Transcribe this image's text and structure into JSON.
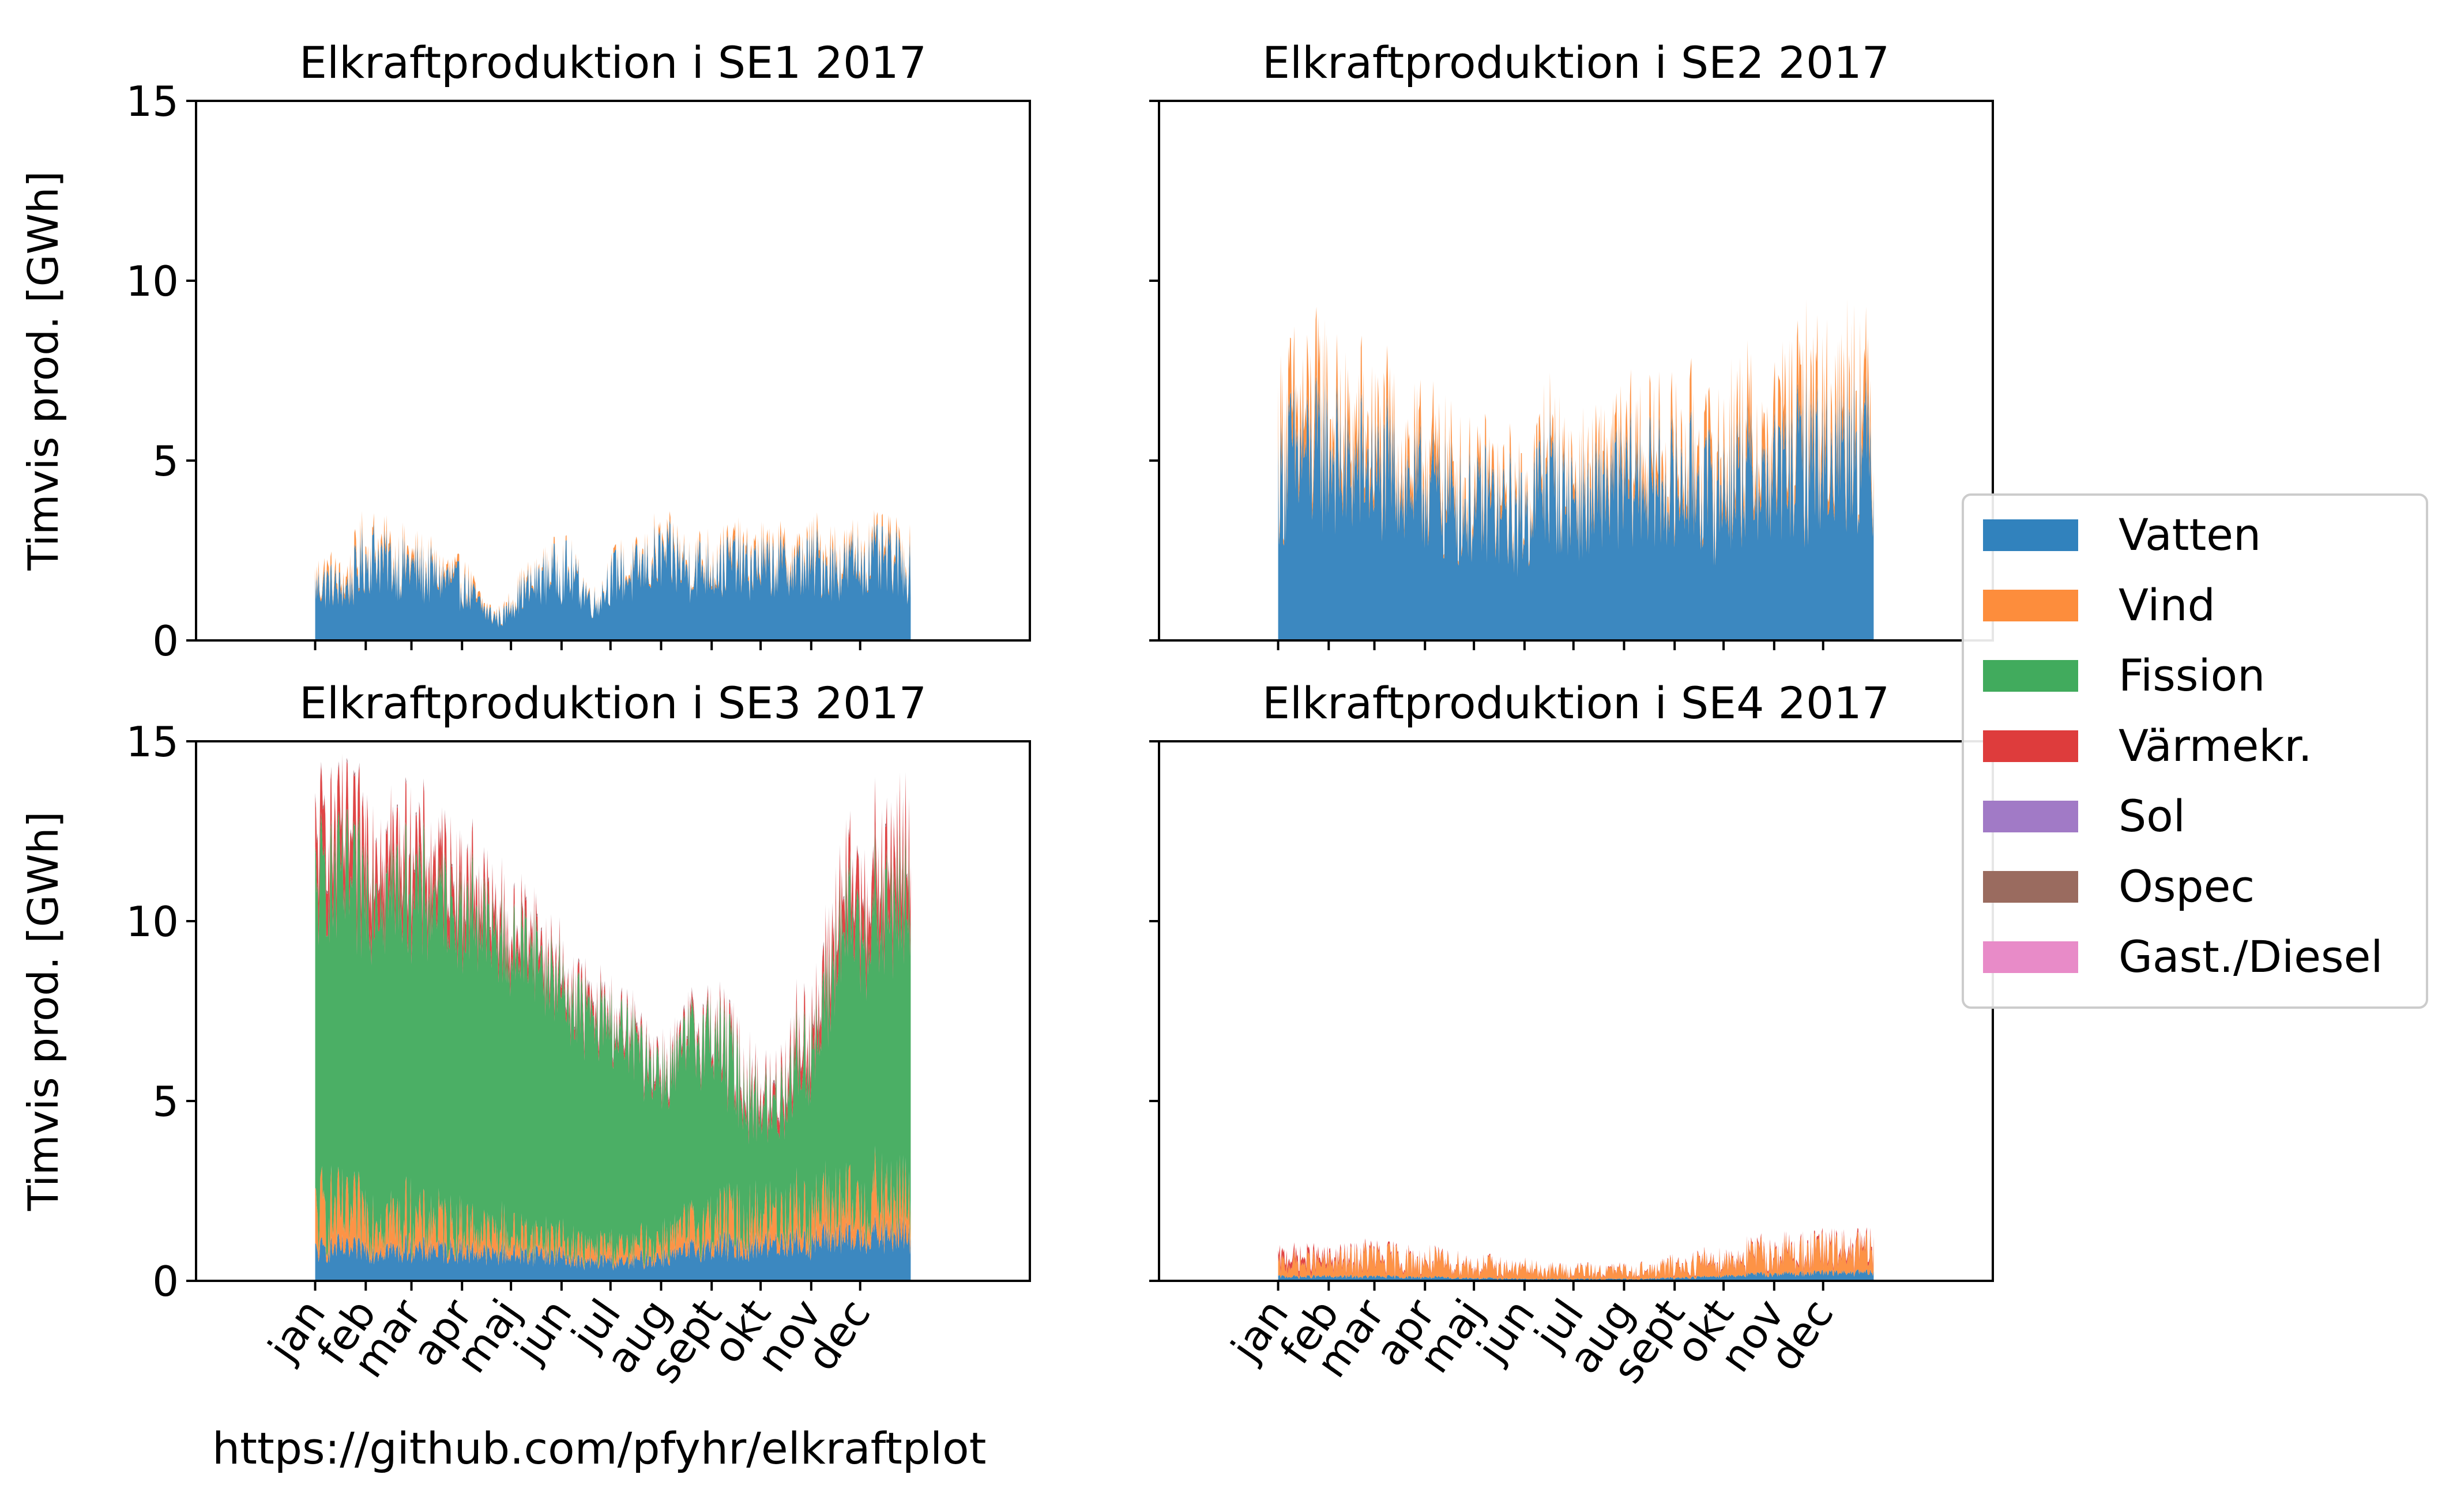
{
  "footer": {
    "url": "https://github.com/pfyhr/elkraftplot"
  },
  "chart_data": [
    {
      "type": "area",
      "title": "Elkraftproduktion i SE1 2017",
      "ylabel": "Timvis prod. [GWh]",
      "xlabel": "",
      "ylim": [
        0,
        15
      ],
      "yticks": [
        0,
        5,
        10,
        15
      ],
      "months": [
        "jan",
        "feb",
        "mar",
        "apr",
        "maj",
        "jun",
        "jul",
        "aug",
        "sept",
        "okt",
        "nov",
        "dec"
      ],
      "month_start_hours": [
        0,
        744,
        1416,
        2160,
        2880,
        3624,
        4344,
        5088,
        5832,
        6552,
        7296,
        8016
      ],
      "series": [
        {
          "name": "Vatten",
          "approx_weekly_GWh": [
            1.5,
            1.6,
            1.4,
            1.5,
            2.2,
            2.4,
            2.2,
            2.0,
            2.1,
            1.9,
            1.8,
            1.7,
            1.6,
            1.4,
            1.0,
            0.7,
            0.6,
            1.1,
            1.4,
            1.6,
            1.9,
            2.0,
            1.8,
            1.4,
            1.0,
            1.6,
            1.9,
            1.8,
            2.0,
            2.2,
            2.3,
            2.2,
            2.0,
            2.1,
            2.0,
            2.1,
            2.2,
            2.0,
            2.1,
            2.0,
            2.1,
            2.0,
            2.1,
            2.2,
            2.1,
            2.0,
            2.2,
            2.1,
            2.3,
            2.2,
            2.1,
            2.0
          ]
        },
        {
          "name": "Vind",
          "approx_weekly_GWh": [
            0.15,
            0.2,
            0.15,
            0.25,
            0.2,
            0.15,
            0.2,
            0.15,
            0.2,
            0.15,
            0.1,
            0.15,
            0.1,
            0.15,
            0.1,
            0.05,
            0.05,
            0.1,
            0.1,
            0.05,
            0.1,
            0.1,
            0.05,
            0.05,
            0.05,
            0.05,
            0.1,
            0.1,
            0.1,
            0.15,
            0.1,
            0.15,
            0.1,
            0.15,
            0.2,
            0.15,
            0.2,
            0.15,
            0.2,
            0.15,
            0.2,
            0.2,
            0.15,
            0.2,
            0.25,
            0.2,
            0.15,
            0.2,
            0.15,
            0.2,
            0.15,
            0.2
          ]
        }
      ]
    },
    {
      "type": "area",
      "title": "Elkraftproduktion i SE2 2017",
      "ylabel": "",
      "xlabel": "",
      "ylim": [
        0,
        15
      ],
      "yticks": [
        0,
        5,
        10,
        15
      ],
      "months": [
        "jan",
        "feb",
        "mar",
        "apr",
        "maj",
        "jun",
        "jul",
        "aug",
        "sept",
        "okt",
        "nov",
        "dec"
      ],
      "month_start_hours": [
        0,
        744,
        1416,
        2160,
        2880,
        3624,
        4344,
        5088,
        5832,
        6552,
        7296,
        8016
      ],
      "series": [
        {
          "name": "Vatten",
          "approx_weekly_GWh": [
            4.6,
            5.1,
            5.2,
            5.0,
            5.5,
            4.9,
            4.6,
            4.9,
            4.7,
            4.4,
            4.8,
            4.3,
            4.0,
            4.5,
            4.0,
            3.9,
            3.7,
            3.6,
            3.9,
            3.4,
            3.6,
            3.3,
            4.2,
            4.7,
            4.2,
            4.0,
            3.9,
            3.7,
            4.4,
            4.2,
            4.3,
            4.6,
            4.2,
            4.4,
            4.2,
            4.3,
            4.6,
            4.1,
            4.2,
            4.6,
            4.7,
            4.5,
            4.4,
            4.8,
            4.7,
            5.1,
            5.3,
            5.0,
            5.4,
            5.8,
            5.6,
            5.1
          ]
        },
        {
          "name": "Vind",
          "approx_weekly_GWh": [
            0.9,
            0.9,
            0.8,
            1.1,
            0.9,
            0.7,
            0.8,
            0.9,
            0.7,
            0.8,
            0.6,
            0.7,
            0.6,
            0.8,
            0.5,
            0.6,
            0.5,
            0.4,
            0.5,
            0.4,
            0.4,
            0.3,
            0.4,
            0.5,
            0.4,
            0.4,
            0.5,
            0.5,
            0.6,
            0.5,
            0.6,
            0.7,
            0.6,
            0.7,
            0.6,
            0.7,
            0.8,
            0.6,
            0.7,
            0.8,
            0.9,
            0.8,
            0.7,
            0.9,
            1.0,
            0.9,
            1.1,
            1.0,
            0.9,
            1.1,
            1.0,
            0.8
          ]
        }
      ]
    },
    {
      "type": "area",
      "title": "Elkraftproduktion i SE3 2017",
      "ylabel": "Timvis prod. [GWh]",
      "xlabel": "",
      "ylim": [
        0,
        15
      ],
      "yticks": [
        0,
        5,
        10,
        15
      ],
      "months": [
        "jan",
        "feb",
        "mar",
        "apr",
        "maj",
        "jun",
        "jul",
        "aug",
        "sept",
        "okt",
        "nov",
        "dec"
      ],
      "month_start_hours": [
        0,
        744,
        1416,
        2160,
        2880,
        3624,
        4344,
        5088,
        5832,
        6552,
        7296,
        8016
      ],
      "series": [
        {
          "name": "Vatten",
          "approx_weekly_GWh": [
            0.8,
            0.9,
            0.9,
            0.8,
            0.9,
            0.8,
            0.9,
            0.8,
            0.9,
            0.8,
            0.9,
            0.8,
            0.9,
            0.8,
            0.8,
            0.7,
            0.8,
            0.7,
            0.7,
            0.8,
            0.7,
            0.7,
            0.6,
            0.5,
            0.5,
            0.6,
            0.5,
            0.5,
            0.6,
            0.6,
            0.7,
            0.7,
            0.8,
            0.9,
            0.9,
            1.0,
            0.9,
            0.9,
            1.0,
            1.0,
            1.1,
            1.1,
            1.0,
            1.1,
            1.2,
            1.2,
            1.1,
            1.2,
            1.3,
            1.2,
            1.3,
            1.2
          ]
        },
        {
          "name": "Vind",
          "approx_weekly_GWh": [
            1.0,
            1.1,
            1.0,
            0.9,
            1.0,
            1.0,
            0.9,
            0.8,
            0.9,
            0.7,
            0.8,
            0.7,
            0.6,
            0.7,
            0.6,
            0.5,
            0.6,
            0.5,
            0.5,
            0.4,
            0.5,
            0.4,
            0.4,
            0.4,
            0.3,
            0.4,
            0.4,
            0.3,
            0.4,
            0.4,
            0.5,
            0.5,
            0.6,
            0.6,
            0.7,
            0.7,
            0.8,
            0.7,
            0.8,
            0.8,
            0.8,
            0.9,
            0.8,
            0.8,
            0.9,
            0.9,
            0.9,
            0.9,
            1.0,
            0.9,
            1.0,
            0.9
          ]
        },
        {
          "name": "Fission",
          "approx_weekly_GWh": [
            9.0,
            9.2,
            9.4,
            9.3,
            9.1,
            9.2,
            9.2,
            9.3,
            9.4,
            9.2,
            9.0,
            9.1,
            9.0,
            8.9,
            8.8,
            8.4,
            7.9,
            7.7,
            8.1,
            7.9,
            7.4,
            7.2,
            6.8,
            6.6,
            6.3,
            6.2,
            6.0,
            5.8,
            5.4,
            5.0,
            4.5,
            4.8,
            5.2,
            5.3,
            5.2,
            4.8,
            4.2,
            3.6,
            3.2,
            2.9,
            3.3,
            4.0,
            4.4,
            4.6,
            6.2,
            7.5,
            7.9,
            7.8,
            7.9,
            8.3,
            8.4,
            8.1
          ]
        },
        {
          "name": "Värmekr.",
          "approx_weekly_GWh": [
            1.3,
            1.3,
            1.2,
            1.2,
            1.3,
            1.2,
            1.1,
            1.0,
            1.1,
            1.0,
            0.9,
            1.0,
            0.8,
            0.9,
            0.7,
            0.6,
            0.6,
            0.5,
            0.5,
            0.4,
            0.4,
            0.3,
            0.3,
            0.3,
            0.3,
            0.2,
            0.2,
            0.2,
            0.2,
            0.2,
            0.2,
            0.2,
            0.2,
            0.2,
            0.2,
            0.3,
            0.3,
            0.3,
            0.3,
            0.3,
            0.4,
            0.5,
            0.6,
            0.6,
            0.8,
            0.9,
            1.0,
            1.1,
            1.1,
            1.2,
            1.2,
            1.2
          ]
        },
        {
          "name": "Sol",
          "approx_weekly_GWh": [
            0.02,
            0.02,
            0.02,
            0.02,
            0.02,
            0.02,
            0.02,
            0.02,
            0.02,
            0.02,
            0.02,
            0.02,
            0.02,
            0.02,
            0.02,
            0.02,
            0.02,
            0.02,
            0.02,
            0.02,
            0.02,
            0.02,
            0.02,
            0.02,
            0.02,
            0.02,
            0.02,
            0.02,
            0.02,
            0.02,
            0.02,
            0.02,
            0.02,
            0.02,
            0.02,
            0.02,
            0.02,
            0.02,
            0.02,
            0.02,
            0.02,
            0.02,
            0.02,
            0.02,
            0.02,
            0.02,
            0.02,
            0.02,
            0.02,
            0.02,
            0.02,
            0.02
          ]
        },
        {
          "name": "Ospec",
          "approx_weekly_GWh": [
            0.05,
            0.05,
            0.05,
            0.05,
            0.05,
            0.05,
            0.05,
            0.05,
            0.05,
            0.05,
            0.05,
            0.05,
            0.05,
            0.05,
            0.05,
            0.05,
            0.05,
            0.05,
            0.05,
            0.05,
            0.05,
            0.05,
            0.05,
            0.05,
            0.05,
            0.05,
            0.05,
            0.05,
            0.05,
            0.05,
            0.05,
            0.05,
            0.05,
            0.05,
            0.05,
            0.05,
            0.05,
            0.05,
            0.05,
            0.05,
            0.05,
            0.05,
            0.05,
            0.05,
            0.05,
            0.05,
            0.05,
            0.05,
            0.05,
            0.05,
            0.05,
            0.05
          ]
        },
        {
          "name": "Gast./Diesel",
          "approx_weekly_GWh": [
            0.01,
            0.01,
            0.01,
            0.01,
            0.01,
            0.01,
            0.01,
            0.01,
            0.01,
            0.01,
            0.01,
            0.01,
            0.01,
            0.01,
            0.01,
            0.01,
            0.01,
            0.01,
            0.01,
            0.01,
            0.01,
            0.01,
            0.01,
            0.01,
            0.01,
            0.01,
            0.01,
            0.01,
            0.01,
            0.01,
            0.01,
            0.01,
            0.01,
            0.01,
            0.01,
            0.01,
            0.01,
            0.01,
            0.01,
            0.01,
            0.01,
            0.01,
            0.01,
            0.01,
            0.01,
            0.01,
            0.01,
            0.01,
            0.01,
            0.01,
            0.01,
            0.01
          ]
        }
      ]
    },
    {
      "type": "area",
      "title": "Elkraftproduktion i SE4 2017",
      "ylabel": "",
      "xlabel": "",
      "ylim": [
        0,
        15
      ],
      "yticks": [
        0,
        5,
        10,
        15
      ],
      "months": [
        "jan",
        "feb",
        "mar",
        "apr",
        "maj",
        "jun",
        "jul",
        "aug",
        "sept",
        "okt",
        "nov",
        "dec"
      ],
      "month_start_hours": [
        0,
        744,
        1416,
        2160,
        2880,
        3624,
        4344,
        5088,
        5832,
        6552,
        7296,
        8016
      ],
      "series": [
        {
          "name": "Vatten",
          "approx_weekly_GWh": [
            0.12,
            0.12,
            0.11,
            0.12,
            0.12,
            0.11,
            0.12,
            0.11,
            0.12,
            0.11,
            0.11,
            0.1,
            0.1,
            0.1,
            0.09,
            0.08,
            0.08,
            0.07,
            0.07,
            0.06,
            0.06,
            0.05,
            0.05,
            0.05,
            0.05,
            0.05,
            0.05,
            0.05,
            0.05,
            0.05,
            0.05,
            0.05,
            0.06,
            0.07,
            0.08,
            0.09,
            0.1,
            0.12,
            0.14,
            0.15,
            0.17,
            0.18,
            0.18,
            0.2,
            0.2,
            0.21,
            0.21,
            0.22,
            0.22,
            0.23,
            0.22,
            0.22
          ]
        },
        {
          "name": "Vind",
          "approx_weekly_GWh": [
            0.3,
            0.4,
            0.35,
            0.4,
            0.35,
            0.45,
            0.4,
            0.5,
            0.55,
            0.45,
            0.5,
            0.45,
            0.4,
            0.45,
            0.4,
            0.35,
            0.4,
            0.3,
            0.35,
            0.3,
            0.25,
            0.3,
            0.25,
            0.2,
            0.25,
            0.2,
            0.25,
            0.2,
            0.2,
            0.25,
            0.2,
            0.25,
            0.2,
            0.3,
            0.35,
            0.3,
            0.4,
            0.45,
            0.4,
            0.45,
            0.5,
            0.55,
            0.5,
            0.55,
            0.6,
            0.55,
            0.6,
            0.55,
            0.6,
            0.55,
            0.6,
            0.55
          ]
        },
        {
          "name": "Värmekr.",
          "approx_weekly_GWh": [
            0.2,
            0.18,
            0.16,
            0.15,
            0.12,
            0.1,
            0.08,
            0.07,
            0.07,
            0.06,
            0.05,
            0.05,
            0.04,
            0.04,
            0.04,
            0.03,
            0.03,
            0.03,
            0.03,
            0.03,
            0.02,
            0.02,
            0.02,
            0.02,
            0.02,
            0.02,
            0.02,
            0.02,
            0.02,
            0.02,
            0.02,
            0.02,
            0.02,
            0.02,
            0.03,
            0.03,
            0.03,
            0.04,
            0.04,
            0.05,
            0.05,
            0.06,
            0.06,
            0.07,
            0.07,
            0.08,
            0.08,
            0.09,
            0.09,
            0.1,
            0.1,
            0.1
          ]
        }
      ]
    }
  ],
  "legend": {
    "placement": "right",
    "items": [
      {
        "label": "Vatten",
        "color": "#3182bd"
      },
      {
        "label": "Vind",
        "color": "#fd8d3c"
      },
      {
        "label": "Fission",
        "color": "#41ab5d"
      },
      {
        "label": "Värmekr.",
        "color": "#de3c3c"
      },
      {
        "label": "Sol",
        "color": "#a17ac6"
      },
      {
        "label": "Ospec",
        "color": "#9a6b5f"
      },
      {
        "label": "Gast./Diesel",
        "color": "#e88bc8"
      }
    ]
  }
}
